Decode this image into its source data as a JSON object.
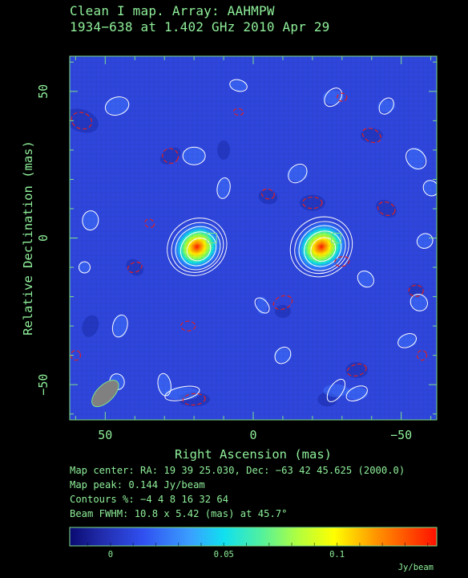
{
  "header": {
    "line1": "Clean I map.  Array:  AAHMPW",
    "line2": "1934−638 at 1.402 GHz 2010 Apr 29"
  },
  "info": {
    "center": "Map center:  RA: 19 39 25.030,  Dec: −63 42 45.625 (2000.0)",
    "peak": "Map peak: 0.144 Jy/beam",
    "contours": "Contours %: −4 4 8 16 32 64",
    "beam": "Beam FWHM: 10.8 x 5.42 (mas) at 45.7°"
  },
  "colors": {
    "background": "#000000",
    "frame": "#7ee08a",
    "positive_contour": "#ffffff",
    "negative_contour": "#e02020",
    "beam_fill": "#808080"
  },
  "chart_data": {
    "type": "heatmap",
    "title": "Clean I map.  Array:  AAHMPW",
    "subtitle": "1934−638 at 1.402 GHz 2010 Apr 29",
    "xlabel": "Right Ascension  (mas)",
    "ylabel": "Relative Declination  (mas)",
    "xlim": [
      62,
      -62
    ],
    "ylim": [
      -62,
      62
    ],
    "x_ticks": [
      50,
      0,
      -50
    ],
    "y_ticks": [
      50,
      0,
      -50
    ],
    "x_tick_labels": [
      "50",
      "0",
      "−50"
    ],
    "y_tick_labels": [
      "50",
      "0",
      "−50"
    ],
    "colorbar": {
      "range": [
        -0.018,
        0.144
      ],
      "ticks": [
        0,
        0.05,
        0.1
      ],
      "tick_labels": [
        "0",
        "0.05",
        "0.1"
      ],
      "unit": "Jy/beam"
    },
    "map_peak_jy_per_beam": 0.144,
    "contour_levels_percent": [
      -4,
      4,
      8,
      16,
      32,
      64
    ],
    "components": [
      {
        "ra": 19,
        "dec": -3,
        "peak": 0.105
      },
      {
        "ra": -23,
        "dec": -3,
        "peak": 0.144
      }
    ],
    "beam": {
      "major_mas": 10.8,
      "minor_mas": 5.42,
      "pa_deg": 45.7,
      "ra": 50,
      "dec": -53
    },
    "markers": [
      {
        "shape": "square",
        "ra": 14,
        "dec": 0
      },
      {
        "shape": "square",
        "ra": -28,
        "dec": 0
      }
    ]
  }
}
